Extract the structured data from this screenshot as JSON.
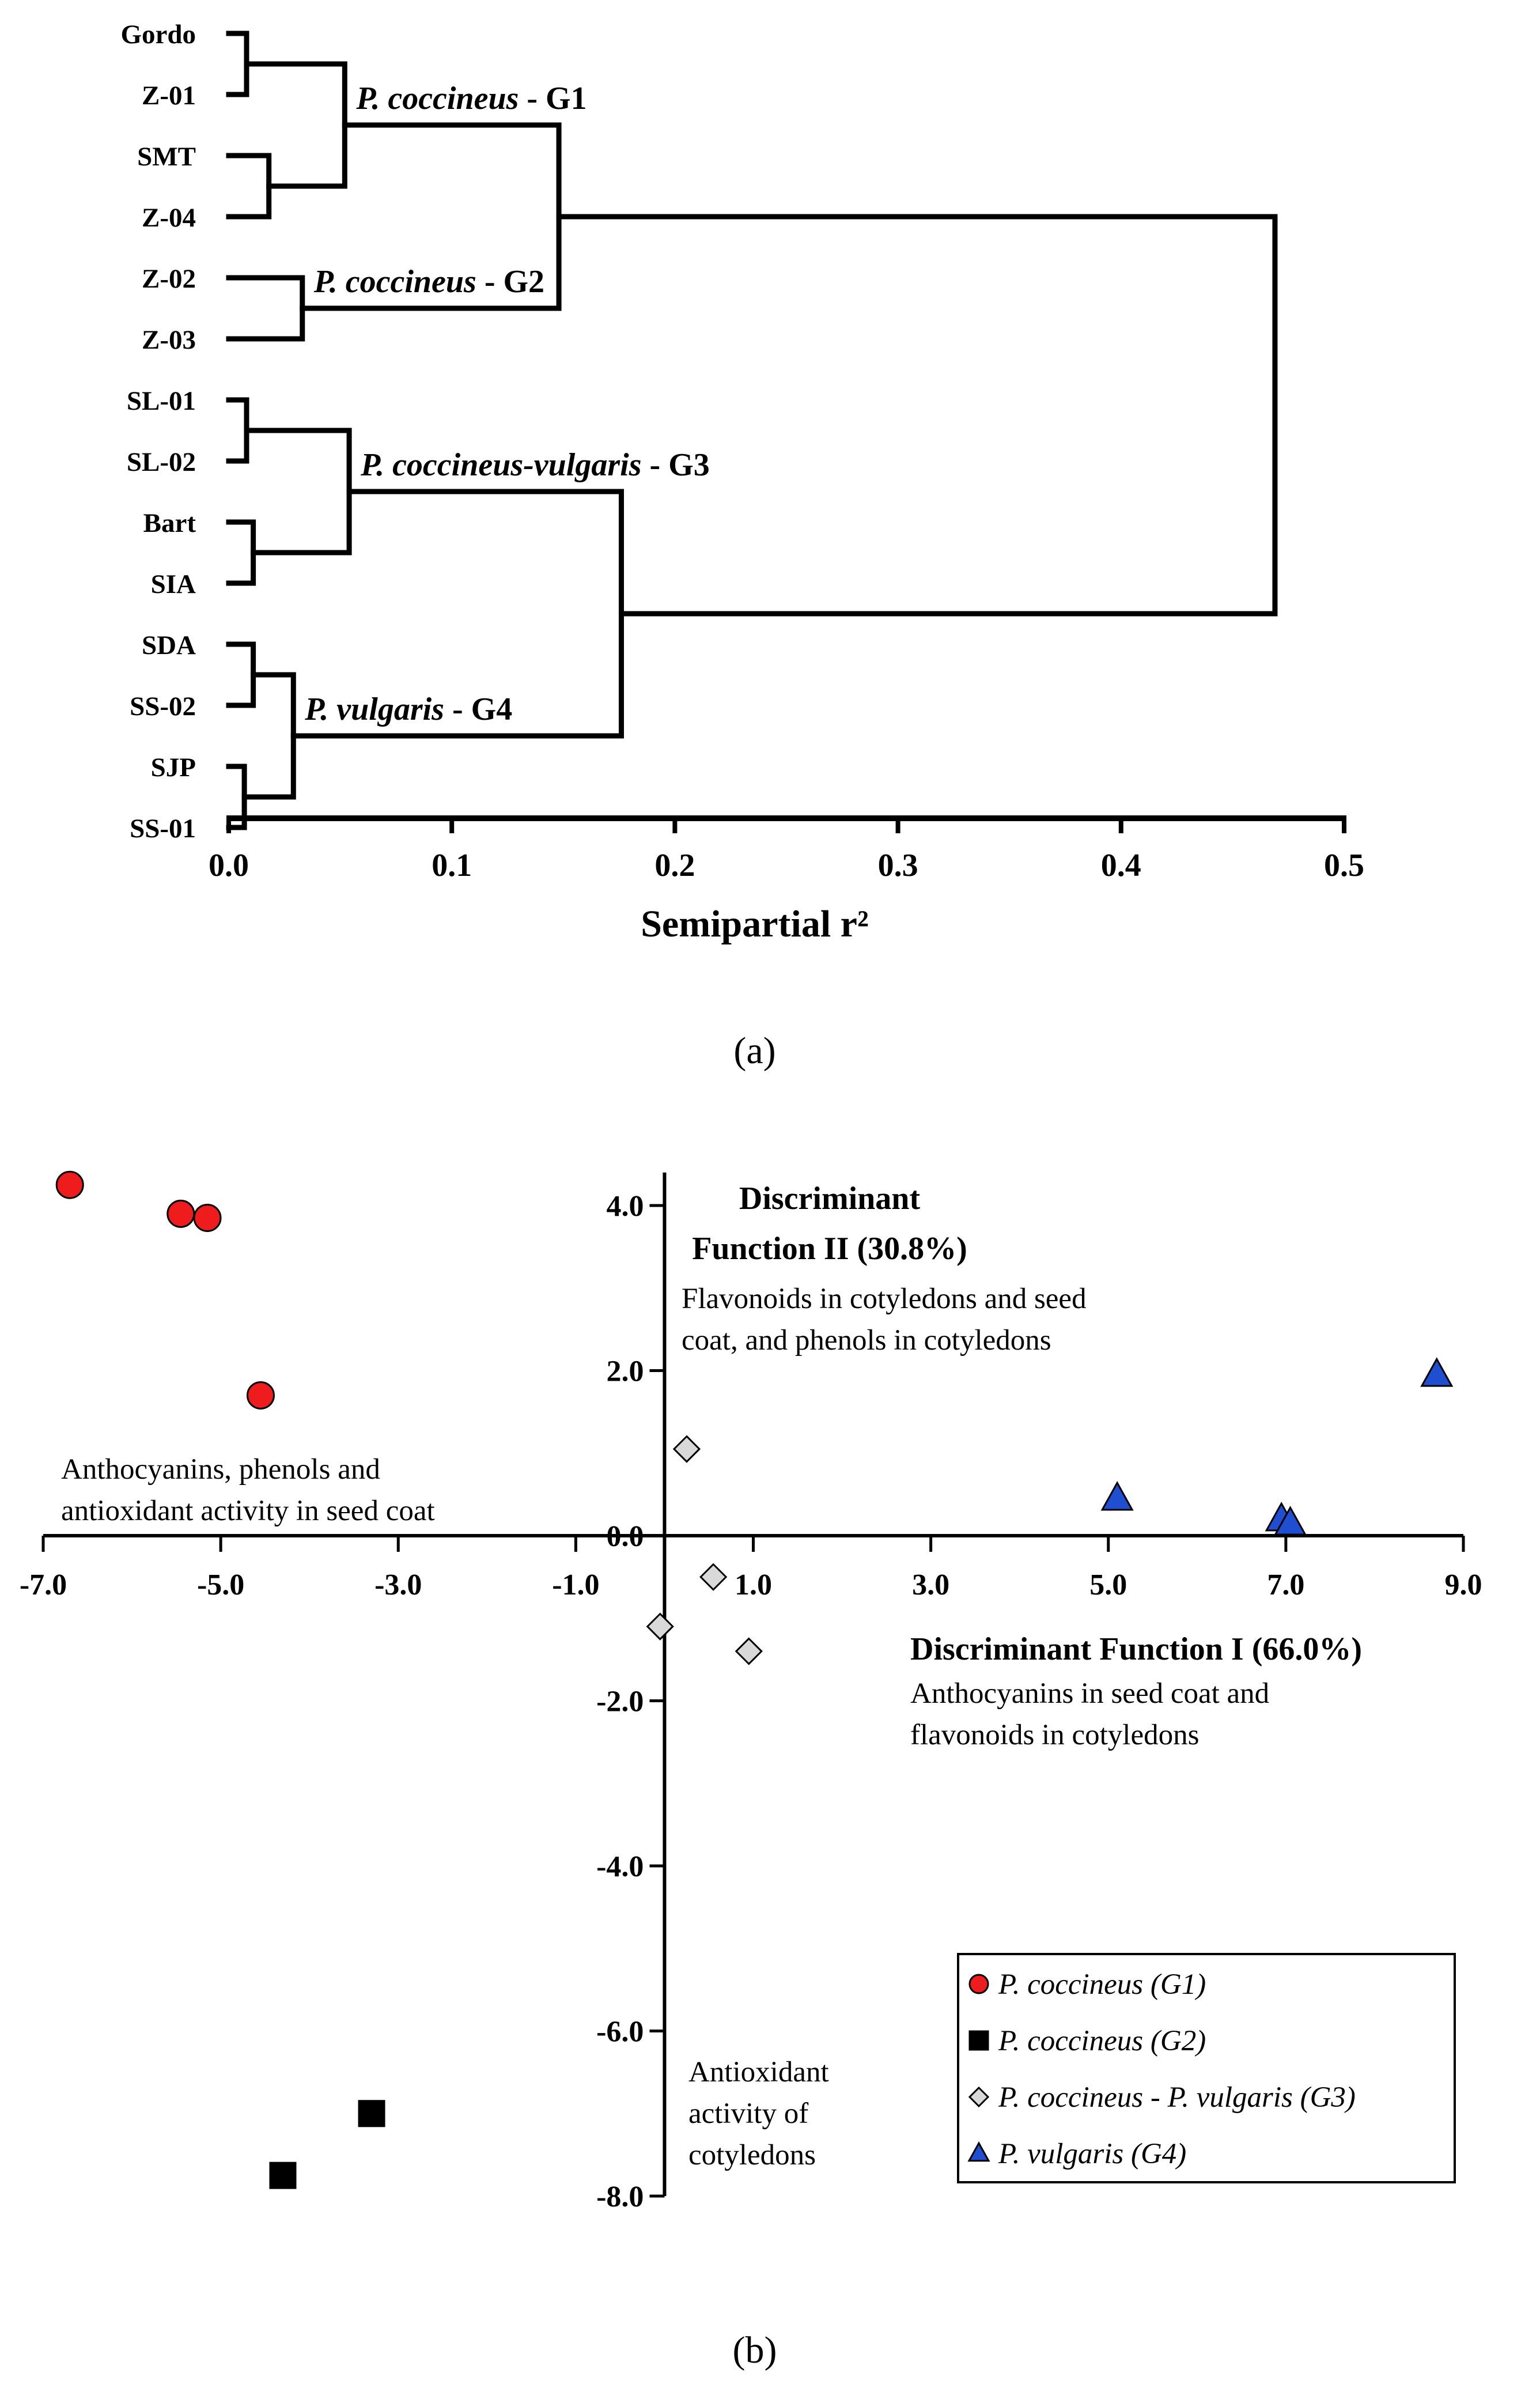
{
  "chart_data": [
    {
      "type": "dendrogram",
      "panel_label": "(a)",
      "xlabel": "Semipartial r²",
      "xlim": [
        0,
        0.5
      ],
      "ticks": [
        {
          "v": 0.0,
          "label": "0.0"
        },
        {
          "v": 0.1,
          "label": "0.1"
        },
        {
          "v": 0.2,
          "label": "0.2"
        },
        {
          "v": 0.3,
          "label": "0.3"
        },
        {
          "v": 0.4,
          "label": "0.4"
        },
        {
          "v": 0.5,
          "label": "0.5"
        }
      ],
      "leaves": [
        "Gordo",
        "Z-01",
        "SMT",
        "Z-04",
        "Z-02",
        "Z-03",
        "SL-01",
        "SL-02",
        "Bart",
        "SIA",
        "SDA",
        "SS-02",
        "SJP",
        "SS-01"
      ],
      "merges": [
        {
          "id": "m1",
          "a": "Gordo",
          "b": "Z-01",
          "h": 0.008
        },
        {
          "id": "m2",
          "a": "SMT",
          "b": "Z-04",
          "h": 0.018
        },
        {
          "id": "m3",
          "a": "m1",
          "b": "m2",
          "h": 0.052
        },
        {
          "id": "m4",
          "a": "Z-02",
          "b": "Z-03",
          "h": 0.033
        },
        {
          "id": "m5",
          "a": "m3",
          "b": "m4",
          "h": 0.148
        },
        {
          "id": "m6",
          "a": "SL-01",
          "b": "SL-02",
          "h": 0.008
        },
        {
          "id": "m7",
          "a": "Bart",
          "b": "SIA",
          "h": 0.011
        },
        {
          "id": "m8",
          "a": "m6",
          "b": "m7",
          "h": 0.054
        },
        {
          "id": "m9",
          "a": "SDA",
          "b": "SS-02",
          "h": 0.011
        },
        {
          "id": "m10",
          "a": "SJP",
          "b": "SS-01",
          "h": 0.007
        },
        {
          "id": "m11",
          "a": "m9",
          "b": "m10",
          "h": 0.029
        },
        {
          "id": "m12",
          "a": "m8",
          "b": "m11",
          "h": 0.176
        },
        {
          "id": "m13",
          "a": "m5",
          "b": "m12",
          "h": 0.469
        }
      ],
      "groups": [
        {
          "node": "m3",
          "species": "P. coccineus",
          "tag": " - G1"
        },
        {
          "node": "m4",
          "species": "P. coccineus",
          "tag": " - G2"
        },
        {
          "node": "m8",
          "species": "P. coccineus-vulgaris",
          "tag": " - G3"
        },
        {
          "node": "m11",
          "species": "P. vulgaris",
          "tag": " - G4"
        }
      ]
    },
    {
      "type": "scatter",
      "panel_label": "(b)",
      "xlim": [
        -7.0,
        9.0
      ],
      "ylim": [
        -8.0,
        4.0
      ],
      "xticks": [
        {
          "v": -7.0,
          "label": "-7.0"
        },
        {
          "v": -5.0,
          "label": "-5.0"
        },
        {
          "v": -3.0,
          "label": "-3.0"
        },
        {
          "v": -1.0,
          "label": "-1.0"
        },
        {
          "v": 1.0,
          "label": "1.0"
        },
        {
          "v": 3.0,
          "label": "3.0"
        },
        {
          "v": 5.0,
          "label": "5.0"
        },
        {
          "v": 7.0,
          "label": "7.0"
        },
        {
          "v": 9.0,
          "label": "9.0"
        }
      ],
      "yticks": [
        {
          "v": 4.0,
          "label": "4.0"
        },
        {
          "v": 2.0,
          "label": "2.0"
        },
        {
          "v": 0.0,
          "label": "0.0"
        },
        {
          "v": -2.0,
          "label": "-2.0"
        },
        {
          "v": -4.0,
          "label": "-4.0"
        },
        {
          "v": -6.0,
          "label": "-6.0"
        },
        {
          "v": -8.0,
          "label": "-8.0"
        }
      ],
      "xlabel": "Discriminant Function I (66.0%)",
      "xlabel_note": [
        "Anthocyanins in seed coat and",
        "flavonoids in cotyledons"
      ],
      "ylabel": [
        "Discriminant",
        "Function II (30.8%)"
      ],
      "ylabel_note": [
        "Flavonoids in cotyledons and seed",
        "coat, and phenols in cotyledons"
      ],
      "left_note": [
        "Anthocyanins, phenols and",
        "antioxidant activity in seed coat"
      ],
      "bottom_note": [
        "Antioxidant",
        "activity of",
        "cotyledons"
      ],
      "series": [
        {
          "name": "P. coccineus (G1)",
          "marker": "circle",
          "color": "#ee1c1c",
          "points": [
            [
              -6.7,
              4.25
            ],
            [
              -5.45,
              3.9
            ],
            [
              -5.15,
              3.85
            ],
            [
              -4.55,
              1.7
            ]
          ]
        },
        {
          "name": "P. coccineus (G2)",
          "marker": "square",
          "color": "#000000",
          "points": [
            [
              -3.3,
              -7.0
            ],
            [
              -4.3,
              -7.75
            ]
          ]
        },
        {
          "name": "P. coccineus - P. vulgaris (G3)",
          "marker": "diamond",
          "color": "#d9d9d9",
          "points": [
            [
              0.25,
              1.05
            ],
            [
              0.55,
              -0.5
            ],
            [
              -0.05,
              -1.1
            ],
            [
              0.95,
              -1.4
            ]
          ]
        },
        {
          "name": "P. vulgaris (G4)",
          "marker": "triangle",
          "color": "#1f4fd0",
          "points": [
            [
              5.1,
              0.45
            ],
            [
              6.95,
              0.2
            ],
            [
              7.05,
              0.15
            ],
            [
              8.7,
              1.95
            ]
          ]
        }
      ]
    }
  ]
}
